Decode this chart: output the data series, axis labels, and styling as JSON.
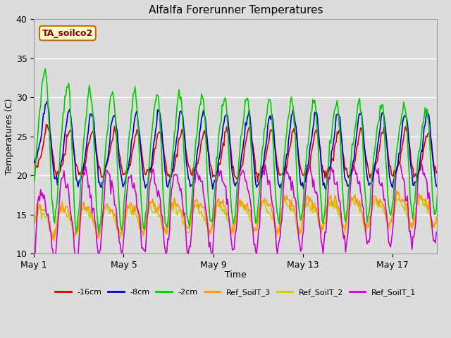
{
  "title": "Alfalfa Forerunner Temperatures",
  "xlabel": "Time",
  "ylabel": "Temperatures (C)",
  "ylim": [
    10,
    40
  ],
  "background_color": "#dcdcdc",
  "plot_bg_color": "#dcdcdc",
  "legend_label": "TA_soilco2",
  "legend_box_color": "#ffffcc",
  "legend_text_color": "#880000",
  "series_colors": {
    "-16cm": "#dd0000",
    "-8cm": "#0000cc",
    "-2cm": "#00cc00",
    "Ref_SoilT_3": "#ff9900",
    "Ref_SoilT_2": "#cccc00",
    "Ref_SoilT_1": "#cc00cc"
  },
  "xtick_labels": [
    "May 1",
    "May 5",
    "May 9",
    "May 13",
    "May 17"
  ],
  "xtick_positions": [
    0,
    4,
    8,
    12,
    16
  ],
  "ytick_labels": [
    "10",
    "15",
    "20",
    "25",
    "30",
    "35",
    "40"
  ],
  "ytick_positions": [
    10,
    15,
    20,
    25,
    30,
    35,
    40
  ],
  "n_points": 432,
  "days_range": 18
}
